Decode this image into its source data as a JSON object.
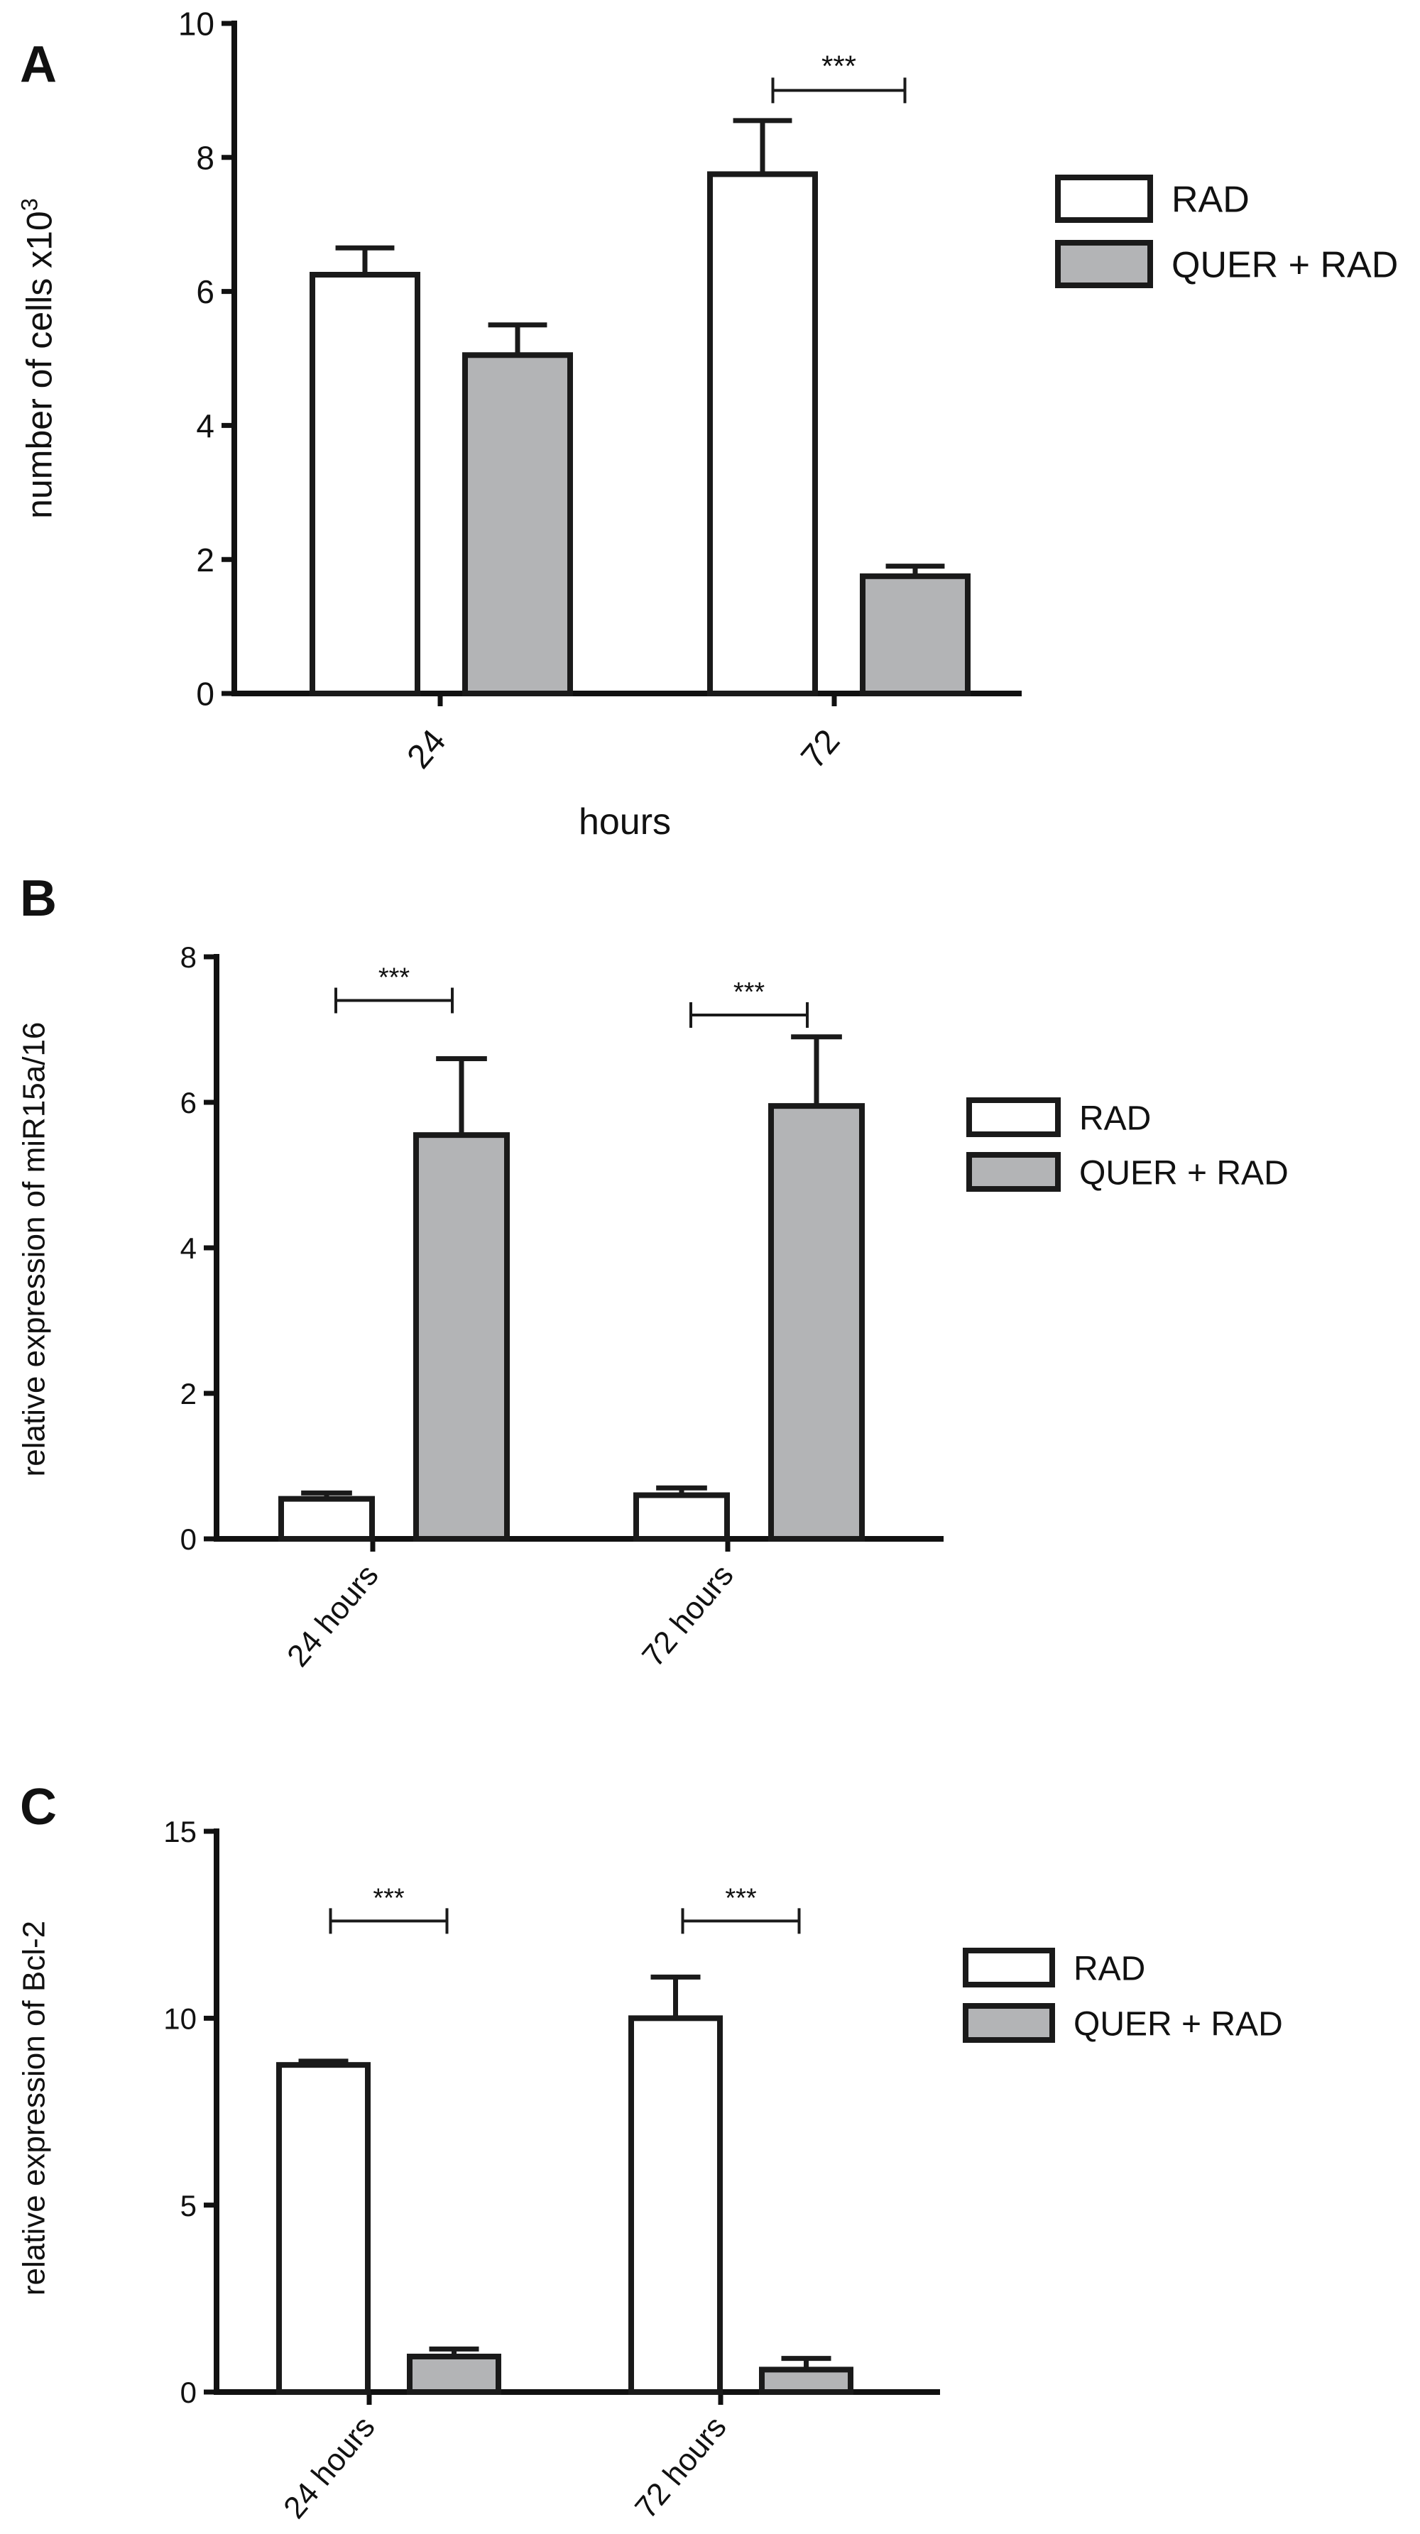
{
  "colors": {
    "RAD": "#ffffff",
    "QUER + RAD": "#b3b4b6",
    "ink": "#1a1a1a"
  },
  "chart_data": [
    {
      "panel": "A",
      "type": "bar",
      "xlabel": "hours",
      "ylabel": "number of cells x10",
      "ylabel_sup": "3",
      "categories": [
        "24",
        "72"
      ],
      "ylim": [
        0,
        10
      ],
      "yticks": [
        0,
        2,
        4,
        6,
        8,
        10
      ],
      "legend_position": "right",
      "series": [
        {
          "name": "RAD",
          "values": [
            6.25,
            7.75
          ],
          "errors": [
            0.4,
            0.8
          ]
        },
        {
          "name": "QUER + RAD",
          "values": [
            5.05,
            1.75
          ],
          "errors": [
            0.45,
            0.15
          ]
        }
      ],
      "annotations": [
        {
          "text": "***",
          "category": "72",
          "y": 9.0
        }
      ]
    },
    {
      "panel": "B",
      "type": "bar",
      "xlabel": "",
      "ylabel": "relative expression of miR15a/16",
      "categories": [
        "24 hours",
        "72 hours"
      ],
      "ylim": [
        0,
        8
      ],
      "yticks": [
        0,
        2,
        4,
        6,
        8
      ],
      "legend_position": "right",
      "series": [
        {
          "name": "RAD",
          "values": [
            0.55,
            0.6
          ],
          "errors": [
            0.08,
            0.1
          ]
        },
        {
          "name": "QUER + RAD",
          "values": [
            5.55,
            5.95
          ],
          "errors": [
            1.05,
            0.95
          ]
        }
      ],
      "annotations": [
        {
          "text": "***",
          "category": "24 hours",
          "y": 7.4
        },
        {
          "text": "***",
          "category": "72 hours",
          "y": 7.2
        }
      ]
    },
    {
      "panel": "C",
      "type": "bar",
      "xlabel": "",
      "ylabel": "relative expression of Bcl-2",
      "categories": [
        "24 hours",
        "72 hours"
      ],
      "ylim": [
        0,
        15
      ],
      "yticks": [
        0,
        5,
        10,
        15
      ],
      "legend_position": "right",
      "series": [
        {
          "name": "RAD",
          "values": [
            8.75,
            10.0
          ],
          "errors": [
            0.1,
            1.1
          ]
        },
        {
          "name": "QUER + RAD",
          "values": [
            0.95,
            0.6
          ],
          "errors": [
            0.2,
            0.3
          ]
        }
      ],
      "annotations": [
        {
          "text": "***",
          "category": "24 hours",
          "y": 12.6
        },
        {
          "text": "***",
          "category": "72 hours",
          "y": 12.6
        }
      ]
    }
  ]
}
